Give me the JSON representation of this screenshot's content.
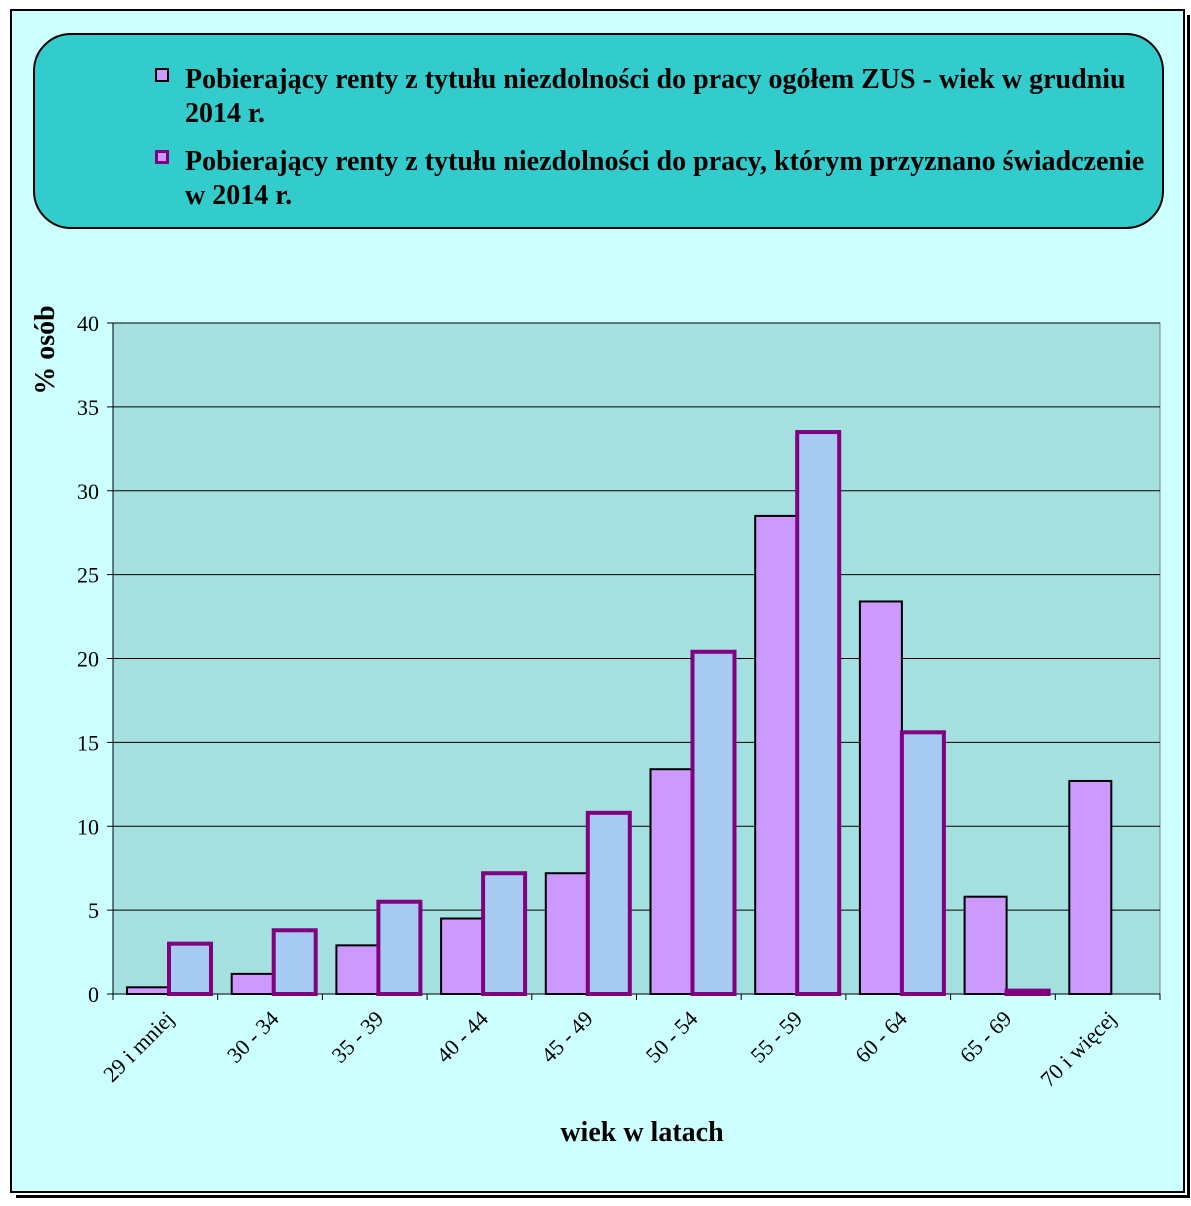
{
  "chart_data": {
    "type": "bar",
    "categories": [
      "29 i mniej",
      "30 - 34",
      "35 - 39",
      "40 - 44",
      "45 - 49",
      "50 - 54",
      "55 - 59",
      "60 - 64",
      "65 - 69",
      "70 i więcej"
    ],
    "series": [
      {
        "name": "Pobierający renty z tytułu niezdolności do pracy ogółem ZUS - wiek w grudniu 2014 r.",
        "values": [
          0.4,
          1.2,
          2.9,
          4.5,
          7.2,
          13.4,
          28.5,
          23.4,
          5.8,
          12.7
        ],
        "color": "#cc99ff",
        "border": "#000000"
      },
      {
        "name": "Pobierający renty z tytułu niezdolności do pracy, którym przyznano świadczenie w 2014 r.",
        "values": [
          3.0,
          3.8,
          5.5,
          7.2,
          10.8,
          20.4,
          33.5,
          15.6,
          0.2,
          null
        ],
        "color": "#a6caf0",
        "border": "#800080"
      }
    ],
    "xlabel": "wiek w latach",
    "ylabel": "% osób",
    "ylim": [
      0,
      40
    ],
    "yticks": [
      0,
      5,
      10,
      15,
      20,
      25,
      30,
      35,
      40
    ],
    "grid": true,
    "legend_position": "top",
    "plot_background": "#a4e0e0",
    "page_background": "#ccffff",
    "legend_background": "#33cccc"
  }
}
